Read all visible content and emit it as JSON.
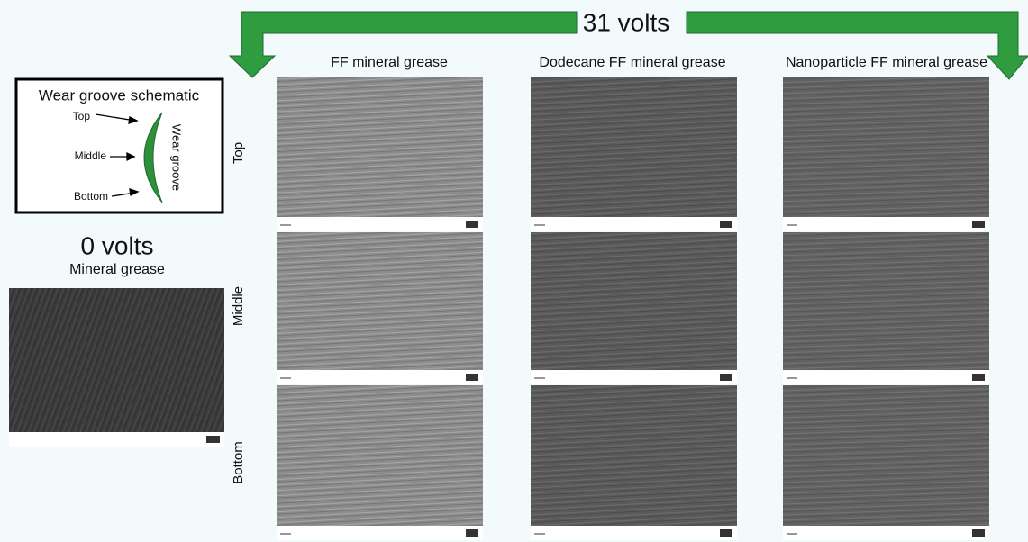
{
  "header": {
    "title": "31 volts"
  },
  "columns": [
    "FF mineral grease",
    "Dodecane FF mineral grease",
    "Nanoparticle FF mineral grease"
  ],
  "rows": [
    "Top",
    "Middle",
    "Bottom"
  ],
  "schematic": {
    "title": "Wear groove schematic",
    "labels": [
      "Top",
      "Middle",
      "Bottom"
    ],
    "groove": "Wear groove"
  },
  "reference": {
    "title": "0 volts",
    "subtitle": "Mineral grease"
  }
}
